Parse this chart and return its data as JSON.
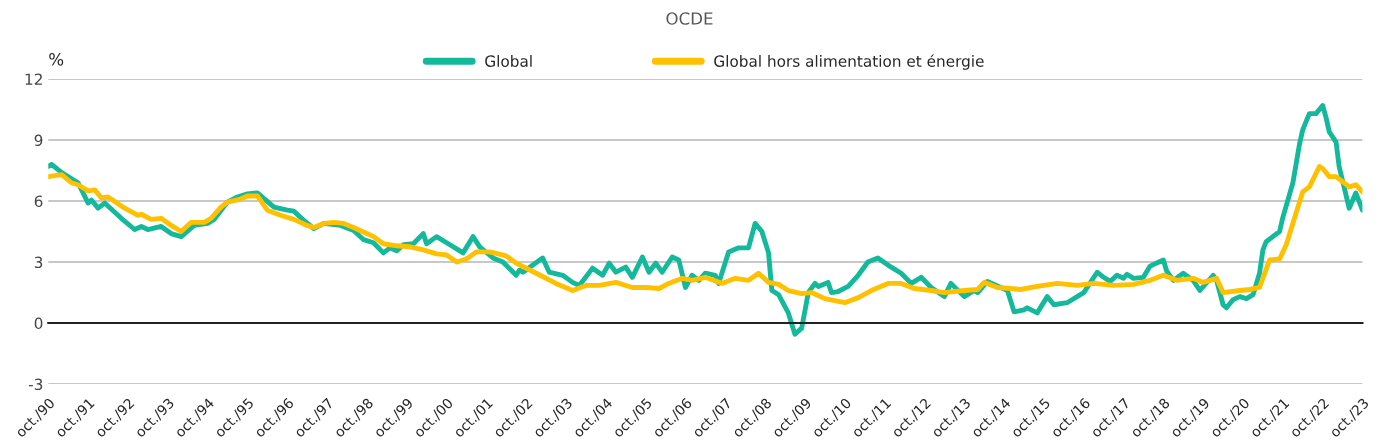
{
  "chart_data": {
    "type": "line",
    "title": "OCDE",
    "ylabel": "%",
    "series": [
      {
        "name": "Global",
        "color": "#14b89a",
        "x": [
          "1990-10",
          "1990-11",
          "1991-02",
          "1991-07",
          "1991-10",
          "1991-11",
          "1992-01",
          "1992-03",
          "1992-08",
          "1992-12",
          "1993-02",
          "1993-04",
          "1993-08",
          "1993-11",
          "1994-02",
          "1994-06",
          "1994-10",
          "1994-12",
          "1995-04",
          "1995-07",
          "1995-10",
          "1996-01",
          "1996-06",
          "1996-10",
          "1996-12",
          "1997-03",
          "1997-06",
          "1997-09",
          "1998-02",
          "1998-06",
          "1998-09",
          "1998-12",
          "1999-03",
          "1999-05",
          "1999-07",
          "1999-09",
          "1999-12",
          "2000-03",
          "2000-04",
          "2000-07",
          "2000-11",
          "2001-03",
          "2001-06",
          "2001-08",
          "2001-12",
          "2002-03",
          "2002-07",
          "2002-08",
          "2002-09",
          "2002-12",
          "2003-03",
          "2003-05",
          "2003-09",
          "2003-12",
          "2004-02",
          "2004-06",
          "2004-09",
          "2004-11",
          "2005-01",
          "2005-04",
          "2005-06",
          "2005-09",
          "2005-11",
          "2006-01",
          "2006-03",
          "2006-06",
          "2006-08",
          "2006-10",
          "2006-12",
          "2007-02",
          "2007-04",
          "2007-07",
          "2007-08",
          "2007-11",
          "2008-02",
          "2008-05",
          "2008-07",
          "2008-09",
          "2008-11",
          "2008-12",
          "2009-02",
          "2009-05",
          "2009-07",
          "2009-09",
          "2009-11",
          "2010-01",
          "2010-02",
          "2010-05",
          "2010-06",
          "2010-08",
          "2010-11",
          "2011-02",
          "2011-05",
          "2011-08",
          "2011-12",
          "2012-03",
          "2012-06",
          "2012-09",
          "2012-12",
          "2013-04",
          "2013-06",
          "2013-10",
          "2014-01",
          "2014-02",
          "2014-05",
          "2014-09",
          "2014-11",
          "2015-01",
          "2015-04",
          "2015-05",
          "2015-08",
          "2015-11",
          "2016-01",
          "2016-05",
          "2016-10",
          "2017-02",
          "2017-04",
          "2017-06",
          "2017-08",
          "2017-10",
          "2017-11",
          "2018-01",
          "2018-04",
          "2018-06",
          "2018-08",
          "2018-10",
          "2018-11",
          "2019-01",
          "2019-04",
          "2019-07",
          "2019-09",
          "2020-01",
          "2020-02",
          "2020-04",
          "2020-05",
          "2020-07",
          "2020-09",
          "2020-11",
          "2021-01",
          "2021-03",
          "2021-04",
          "2021-05",
          "2021-09",
          "2021-10",
          "2022-01",
          "2022-03",
          "2022-04",
          "2022-06",
          "2022-08",
          "2022-10",
          "2022-11",
          "2022-12",
          "2023-02",
          "2023-03",
          "2023-06",
          "2023-08",
          "2023-10"
        ],
        "values": [
          7.7,
          7.8,
          7.4,
          6.9,
          5.9,
          6.05,
          5.65,
          5.9,
          5.15,
          4.6,
          4.75,
          4.6,
          4.75,
          4.4,
          4.25,
          4.8,
          4.9,
          5.1,
          5.95,
          6.2,
          6.35,
          6.4,
          5.7,
          5.55,
          5.5,
          5.05,
          4.65,
          4.9,
          4.8,
          4.55,
          4.1,
          3.95,
          3.45,
          3.7,
          3.55,
          3.85,
          3.9,
          4.4,
          3.9,
          4.25,
          3.85,
          3.45,
          4.25,
          3.75,
          3.2,
          3.0,
          2.35,
          2.6,
          2.5,
          2.85,
          3.2,
          2.5,
          2.35,
          2.0,
          1.85,
          2.7,
          2.35,
          2.95,
          2.5,
          2.75,
          2.25,
          3.25,
          2.5,
          2.95,
          2.5,
          3.25,
          3.1,
          1.75,
          2.35,
          2.1,
          2.45,
          2.35,
          1.95,
          3.5,
          3.7,
          3.7,
          4.9,
          4.5,
          3.45,
          1.6,
          1.4,
          0.5,
          -0.55,
          -0.25,
          1.5,
          1.95,
          1.8,
          2.0,
          1.5,
          1.55,
          1.8,
          2.35,
          3.0,
          3.2,
          2.75,
          2.45,
          1.95,
          2.25,
          1.75,
          1.3,
          1.95,
          1.3,
          1.6,
          1.5,
          2.05,
          1.75,
          1.6,
          0.55,
          0.65,
          0.75,
          0.5,
          1.3,
          0.9,
          1.0,
          1.5,
          2.5,
          2.25,
          2.05,
          2.35,
          2.2,
          2.4,
          2.2,
          2.25,
          2.8,
          2.95,
          3.1,
          2.55,
          2.1,
          2.45,
          2.1,
          1.6,
          2.35,
          2.1,
          0.9,
          0.75,
          1.15,
          1.3,
          1.2,
          1.4,
          2.45,
          3.6,
          4.0,
          4.5,
          5.2,
          6.9,
          8.75,
          9.5,
          10.3,
          10.3,
          10.7,
          10.1,
          9.4,
          8.9,
          7.7,
          5.65,
          6.4,
          5.55
        ]
      },
      {
        "name": "Global hors alimentation et énergie",
        "color": "#ffc000",
        "x": [
          "1990-10",
          "1991-02",
          "1991-05",
          "1991-07",
          "1991-10",
          "1991-12",
          "1992-02",
          "1992-04",
          "1992-09",
          "1993-01",
          "1993-02",
          "1993-05",
          "1993-08",
          "1993-11",
          "1994-02",
          "1994-05",
          "1994-09",
          "1994-11",
          "1995-02",
          "1995-04",
          "1995-08",
          "1995-10",
          "1996-01",
          "1996-04",
          "1996-08",
          "1996-12",
          "1997-04",
          "1997-06",
          "1997-09",
          "1997-12",
          "1998-03",
          "1998-06",
          "1998-10",
          "1998-12",
          "1999-03",
          "1999-07",
          "1999-11",
          "2000-03",
          "2000-07",
          "2000-10",
          "2001-01",
          "2001-04",
          "2001-07",
          "2001-11",
          "2002-04",
          "2002-07",
          "2003-01",
          "2003-07",
          "2003-12",
          "2004-04",
          "2004-08",
          "2005-01",
          "2005-06",
          "2005-10",
          "2006-02",
          "2006-05",
          "2006-09",
          "2006-12",
          "2007-04",
          "2007-09",
          "2008-01",
          "2008-05",
          "2008-08",
          "2008-11",
          "2009-02",
          "2009-05",
          "2009-09",
          "2009-12",
          "2010-04",
          "2010-10",
          "2011-02",
          "2011-06",
          "2011-11",
          "2012-03",
          "2012-07",
          "2012-12",
          "2013-04",
          "2013-10",
          "2014-02",
          "2014-04",
          "2014-08",
          "2014-12",
          "2015-03",
          "2015-08",
          "2016-02",
          "2016-08",
          "2017-01",
          "2017-07",
          "2018-01",
          "2018-06",
          "2018-10",
          "2019-02",
          "2019-07",
          "2019-10",
          "2020-02",
          "2020-04",
          "2020-09",
          "2020-12",
          "2021-03",
          "2021-06",
          "2021-09",
          "2021-11",
          "2022-02",
          "2022-04",
          "2022-06",
          "2022-09",
          "2022-10",
          "2022-12",
          "2023-02",
          "2023-06",
          "2023-08",
          "2023-10"
        ],
        "values": [
          7.2,
          7.3,
          6.9,
          6.8,
          6.5,
          6.55,
          6.15,
          6.2,
          5.65,
          5.3,
          5.35,
          5.1,
          5.15,
          4.8,
          4.5,
          4.95,
          4.95,
          5.15,
          5.7,
          5.95,
          6.1,
          6.25,
          6.25,
          5.55,
          5.3,
          5.1,
          4.8,
          4.7,
          4.9,
          4.95,
          4.9,
          4.7,
          4.4,
          4.25,
          3.9,
          3.8,
          3.75,
          3.6,
          3.4,
          3.35,
          3.0,
          3.15,
          3.5,
          3.5,
          3.3,
          2.95,
          2.45,
          1.95,
          1.6,
          1.85,
          1.85,
          2.0,
          1.75,
          1.75,
          1.7,
          1.95,
          2.2,
          2.1,
          2.25,
          1.95,
          2.2,
          2.1,
          2.45,
          2.0,
          1.9,
          1.6,
          1.45,
          1.5,
          1.2,
          1.0,
          1.25,
          1.6,
          1.95,
          1.95,
          1.7,
          1.6,
          1.5,
          1.6,
          1.65,
          2.0,
          1.75,
          1.7,
          1.65,
          1.8,
          1.95,
          1.85,
          1.95,
          1.85,
          1.9,
          2.1,
          2.35,
          2.1,
          2.2,
          2.0,
          2.2,
          1.5,
          1.6,
          1.65,
          1.75,
          3.1,
          3.15,
          3.85,
          5.45,
          6.45,
          6.7,
          7.7,
          7.6,
          7.2,
          7.2,
          6.7,
          6.8,
          6.45
        ]
      }
    ],
    "xlim": [
      "1990-10",
      "2023-10"
    ],
    "xticks": [
      {
        "value": "1990-10",
        "label": "oct./90"
      },
      {
        "value": "1991-10",
        "label": "oct./91"
      },
      {
        "value": "1992-10",
        "label": "oct./92"
      },
      {
        "value": "1993-10",
        "label": "oct./93"
      },
      {
        "value": "1994-10",
        "label": "oct./94"
      },
      {
        "value": "1995-10",
        "label": "oct./95"
      },
      {
        "value": "1996-10",
        "label": "oct./96"
      },
      {
        "value": "1997-10",
        "label": "oct./97"
      },
      {
        "value": "1998-10",
        "label": "oct./98"
      },
      {
        "value": "1999-10",
        "label": "oct./99"
      },
      {
        "value": "2000-10",
        "label": "oct./00"
      },
      {
        "value": "2001-10",
        "label": "oct./01"
      },
      {
        "value": "2002-10",
        "label": "oct./02"
      },
      {
        "value": "2003-10",
        "label": "oct./03"
      },
      {
        "value": "2004-10",
        "label": "oct./04"
      },
      {
        "value": "2005-10",
        "label": "oct./05"
      },
      {
        "value": "2006-10",
        "label": "oct./06"
      },
      {
        "value": "2007-10",
        "label": "oct./07"
      },
      {
        "value": "2008-10",
        "label": "oct./08"
      },
      {
        "value": "2009-10",
        "label": "oct./09"
      },
      {
        "value": "2010-10",
        "label": "oct./10"
      },
      {
        "value": "2011-10",
        "label": "oct./11"
      },
      {
        "value": "2012-10",
        "label": "oct./12"
      },
      {
        "value": "2013-10",
        "label": "oct./13"
      },
      {
        "value": "2014-10",
        "label": "oct./14"
      },
      {
        "value": "2015-10",
        "label": "oct./15"
      },
      {
        "value": "2016-10",
        "label": "oct./16"
      },
      {
        "value": "2017-10",
        "label": "oct./17"
      },
      {
        "value": "2018-10",
        "label": "oct./18"
      },
      {
        "value": "2019-10",
        "label": "oct./19"
      },
      {
        "value": "2020-10",
        "label": "oct./20"
      },
      {
        "value": "2021-10",
        "label": "oct./21"
      },
      {
        "value": "2022-10",
        "label": "oct./22"
      },
      {
        "value": "2023-10",
        "label": "oct./23"
      }
    ],
    "ylim": [
      -3,
      12
    ],
    "yticks": [
      -3,
      0,
      3,
      6,
      9,
      12
    ],
    "grid": "y",
    "legend": "top",
    "line_style": "solid",
    "marker": "none"
  }
}
